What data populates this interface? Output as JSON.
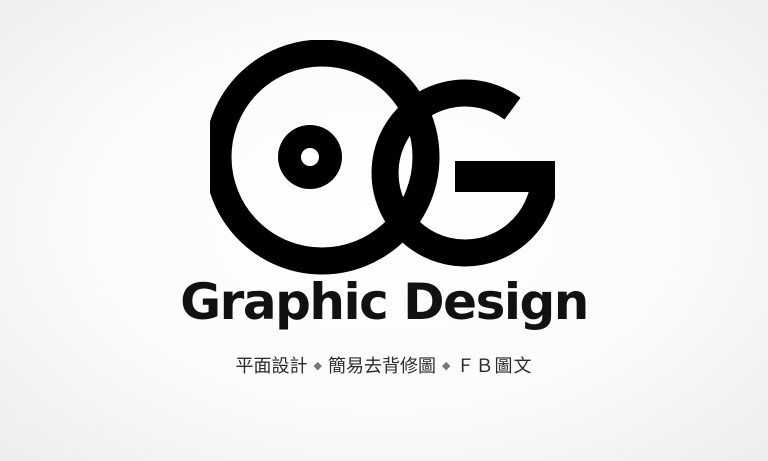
{
  "logo": {
    "monogram": "OG",
    "color": "#000000"
  },
  "brand": {
    "title": "Graphic Design"
  },
  "tagline": {
    "items": [
      "平面設計",
      "簡易去背修圖",
      "ＦＢ圖文"
    ],
    "separator": "◆"
  },
  "colors": {
    "ink": "#000000",
    "background": "#ffffff"
  }
}
